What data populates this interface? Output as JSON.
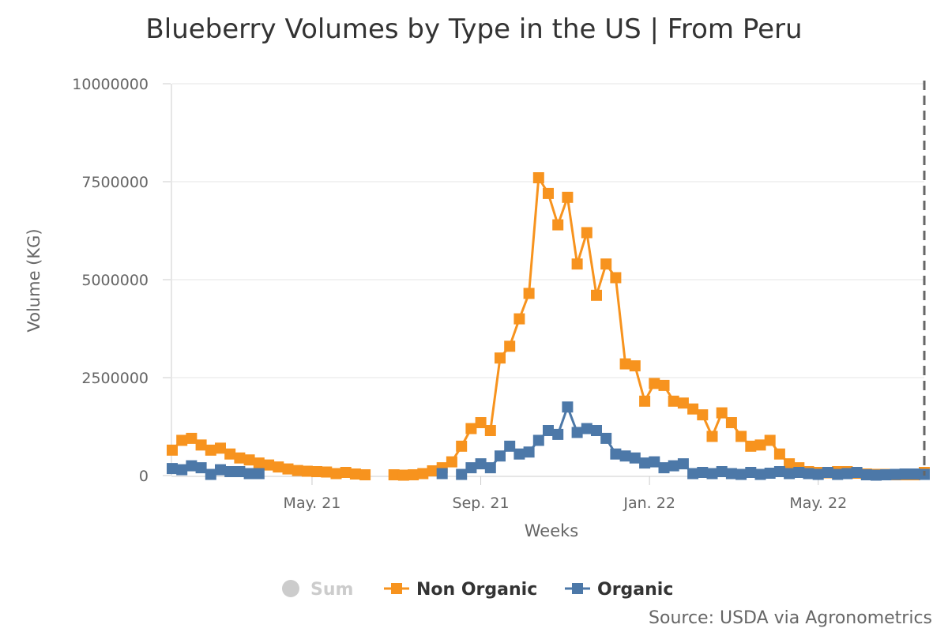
{
  "chart_data": {
    "type": "line",
    "title": "Blueberry Volumes by Type in the US | From Peru",
    "xlabel": "Weeks",
    "ylabel": "Volume (KG)",
    "ylim": [
      0,
      10000000
    ],
    "yticks": [
      {
        "value": 0,
        "label": "0"
      },
      {
        "value": 2500000,
        "label": "2500000"
      },
      {
        "value": 5000000,
        "label": "5000000"
      },
      {
        "value": 7500000,
        "label": "7500000"
      },
      {
        "value": 10000000,
        "label": "10000000"
      }
    ],
    "xrange": [
      0,
      78
    ],
    "xticks": [
      {
        "value": 14.5,
        "label": "May. 21"
      },
      {
        "value": 32,
        "label": "Sep. 21"
      },
      {
        "value": 49.5,
        "label": "Jan. 22"
      },
      {
        "value": 67,
        "label": "May. 22"
      }
    ],
    "current_marker_x": 78,
    "series": [
      {
        "name": "Non Organic",
        "color": "#f7931e",
        "values": [
          650000,
          900000,
          950000,
          780000,
          650000,
          700000,
          550000,
          450000,
          400000,
          320000,
          270000,
          220000,
          170000,
          130000,
          110000,
          100000,
          90000,
          50000,
          80000,
          40000,
          20000,
          null,
          null,
          20000,
          10000,
          20000,
          50000,
          120000,
          200000,
          350000,
          750000,
          1200000,
          1350000,
          1150000,
          3000000,
          3300000,
          4000000,
          4650000,
          7600000,
          7200000,
          6400000,
          7100000,
          5400000,
          6200000,
          4600000,
          5400000,
          5050000,
          2850000,
          2800000,
          1900000,
          2350000,
          2300000,
          1900000,
          1850000,
          1700000,
          1550000,
          1000000,
          1600000,
          1350000,
          1000000,
          750000,
          780000,
          900000,
          550000,
          300000,
          200000,
          100000,
          80000,
          70000,
          100000,
          100000,
          60000,
          40000,
          30000,
          30000,
          20000,
          20000,
          20000,
          80000
        ]
      },
      {
        "name": "Organic",
        "color": "#4c78a8",
        "values": [
          180000,
          150000,
          250000,
          200000,
          30000,
          150000,
          100000,
          100000,
          50000,
          50000,
          null,
          null,
          null,
          null,
          null,
          null,
          null,
          null,
          null,
          null,
          null,
          null,
          null,
          null,
          null,
          null,
          null,
          null,
          50000,
          null,
          30000,
          200000,
          300000,
          200000,
          500000,
          750000,
          550000,
          600000,
          900000,
          1150000,
          1050000,
          1750000,
          1100000,
          1200000,
          1150000,
          950000,
          550000,
          500000,
          450000,
          320000,
          350000,
          200000,
          250000,
          300000,
          50000,
          80000,
          50000,
          100000,
          50000,
          30000,
          80000,
          30000,
          60000,
          100000,
          50000,
          80000,
          50000,
          30000,
          80000,
          30000,
          50000,
          80000,
          20000,
          10000,
          20000,
          30000,
          40000,
          40000,
          30000
        ]
      }
    ],
    "legend": {
      "sum_label": "Sum"
    },
    "credit": "Source: USDA via Agronometrics"
  },
  "colors": {
    "non_organic": "#f7931e",
    "organic": "#4c78a8",
    "legend_disabled": "#cccccc",
    "grid": "#e6e6e6"
  }
}
